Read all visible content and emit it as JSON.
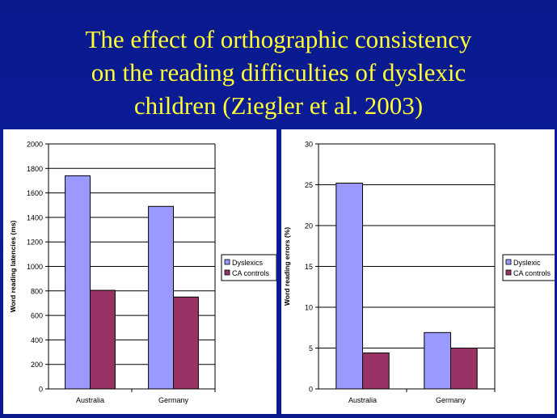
{
  "slide": {
    "title_lines": [
      "The effect of orthographic consistency",
      "on the reading difficulties of dyslexic",
      "children (Ziegler et al. 2003)"
    ]
  },
  "colors": {
    "background": "#0b1c9a",
    "title": "#ffff33",
    "series_1": "#9999ff",
    "series_2": "#993366"
  },
  "chart_data": [
    {
      "type": "bar",
      "categories": [
        "Australia",
        "Germany"
      ],
      "series": [
        {
          "name": "Dyslexics",
          "values": [
            1740,
            1490
          ]
        },
        {
          "name": "CA controls",
          "values": [
            805,
            750
          ]
        }
      ],
      "ylabel": "Word reading latencies (ms)",
      "xlabel": "",
      "ylim": [
        0,
        2000
      ],
      "yticks": [
        "0",
        "200",
        "400",
        "600",
        "800",
        "1000",
        "1200",
        "1400",
        "1600",
        "1800",
        "2000"
      ],
      "grid": true,
      "legend": "right"
    },
    {
      "type": "bar",
      "categories": [
        "Australia",
        "Germany"
      ],
      "series": [
        {
          "name": "Dyslexic",
          "values": [
            25.2,
            6.9
          ]
        },
        {
          "name": "CA controls",
          "values": [
            4.4,
            5.0
          ]
        }
      ],
      "ylabel": "Word reading errors (%)",
      "xlabel": "",
      "ylim": [
        0,
        30
      ],
      "yticks": [
        "0",
        "5",
        "10",
        "15",
        "20",
        "25",
        "30"
      ],
      "grid": true,
      "legend": "right"
    }
  ]
}
